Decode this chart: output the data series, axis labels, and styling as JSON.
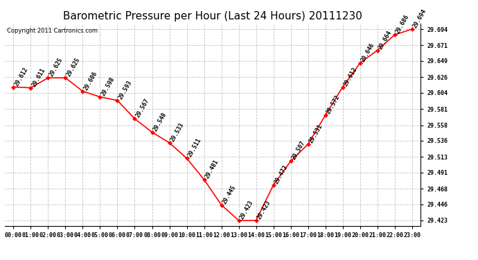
{
  "title": "Barometric Pressure per Hour (Last 24 Hours) 20111230",
  "copyright": "Copyright 2011 Cartronics.com",
  "hours": [
    "00:00",
    "01:00",
    "02:00",
    "03:00",
    "04:00",
    "05:00",
    "06:00",
    "07:00",
    "08:00",
    "09:00",
    "10:00",
    "11:00",
    "12:00",
    "13:00",
    "14:00",
    "15:00",
    "16:00",
    "17:00",
    "18:00",
    "19:00",
    "20:00",
    "21:00",
    "22:00",
    "23:00"
  ],
  "values": [
    29.612,
    29.611,
    29.625,
    29.625,
    29.606,
    29.598,
    29.593,
    29.567,
    29.548,
    29.533,
    29.511,
    29.481,
    29.445,
    29.423,
    29.423,
    29.473,
    29.507,
    29.531,
    29.572,
    29.612,
    29.646,
    29.664,
    29.686,
    29.694
  ],
  "ylim_min": 29.423,
  "ylim_max": 29.694,
  "yticks": [
    29.423,
    29.446,
    29.468,
    29.491,
    29.513,
    29.536,
    29.558,
    29.581,
    29.604,
    29.626,
    29.649,
    29.671,
    29.694
  ],
  "line_color": "red",
  "marker_color": "red",
  "bg_color": "white",
  "grid_color": "#bbbbbb",
  "title_fontsize": 11,
  "label_fontsize": 6,
  "tick_fontsize": 6,
  "copyright_fontsize": 6,
  "annotation_rotation": 60
}
